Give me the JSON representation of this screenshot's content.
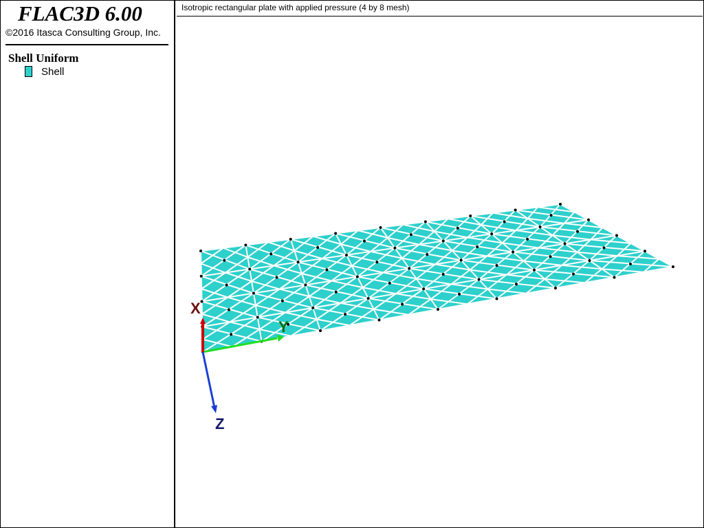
{
  "app": {
    "title": "FLAC3D 6.00",
    "copyright": "©2016 Itasca Consulting Group, Inc."
  },
  "legend": {
    "title": "Shell Uniform",
    "items": [
      {
        "label": "Shell",
        "color": "#2ed0cc"
      }
    ]
  },
  "plot": {
    "title": "Isotropic rectangular plate with applied pressure (4 by 8 mesh)"
  },
  "mesh": {
    "rows": 4,
    "cols": 8,
    "fill_color": "#2ed0cc",
    "edge_color": "#ffffff",
    "node_color": "#000000"
  },
  "axes": {
    "x": {
      "label": "X",
      "color": "#cc0000",
      "label_color": "#6b1010"
    },
    "y": {
      "label": "Y",
      "color": "#22dd22",
      "label_color": "#0f6b0f"
    },
    "z": {
      "label": "Z",
      "color": "#1a3fd6",
      "label_color": "#101a6b"
    }
  }
}
